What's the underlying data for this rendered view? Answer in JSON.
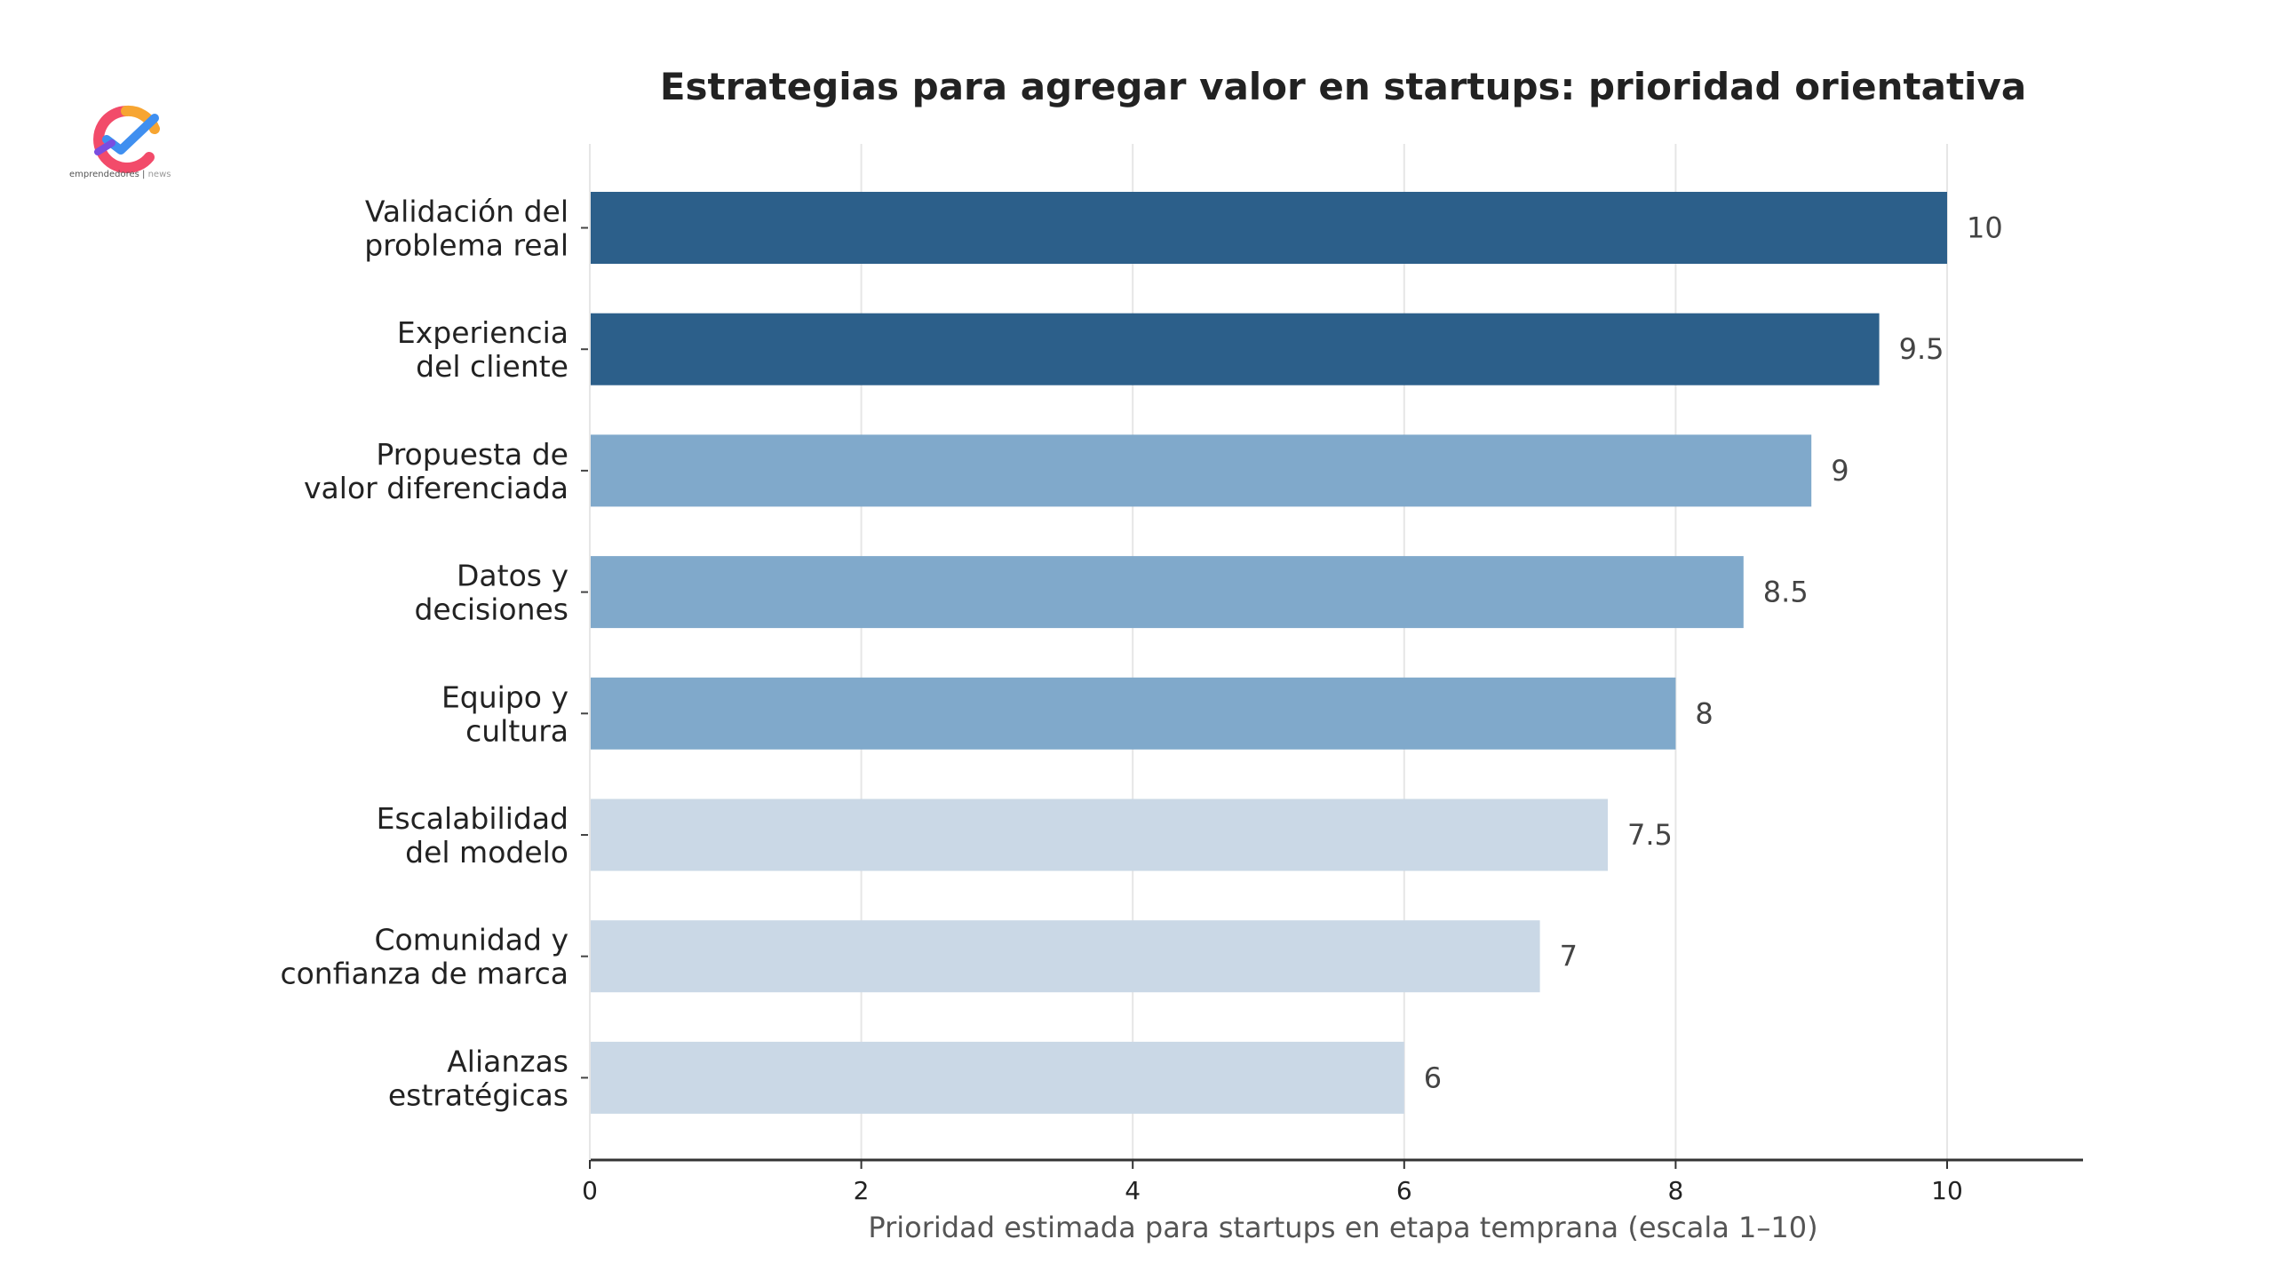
{
  "logo": {
    "text": "emprendedores",
    "suffix": "news"
  },
  "chart_data": {
    "type": "bar",
    "orientation": "horizontal",
    "title": "Estrategias para agregar valor en startups: prioridad orientativa",
    "xlabel": "Prioridad estimada para startups en etapa temprana (escala 1–10)",
    "ylabel": "",
    "xlim": [
      0,
      11
    ],
    "xticks": [
      0,
      2,
      4,
      6,
      8,
      10
    ],
    "grid": "vertical",
    "categories": [
      [
        "Validación del",
        "problema real"
      ],
      [
        "Experiencia",
        "del cliente"
      ],
      [
        "Propuesta de",
        "valor diferenciada"
      ],
      [
        "Datos y",
        "decisiones"
      ],
      [
        "Equipo y",
        "cultura"
      ],
      [
        "Escalabilidad",
        "del modelo"
      ],
      [
        "Comunidad y",
        "confianza de marca"
      ],
      [
        "Alianzas",
        "estratégicas"
      ]
    ],
    "values": [
      10,
      9.5,
      9,
      8.5,
      8,
      7.5,
      7,
      6
    ],
    "value_labels": [
      "10",
      "9.5",
      "9",
      "8.5",
      "8",
      "7.5",
      "7",
      "6"
    ],
    "colors": [
      "#2c5f8a",
      "#2c5f8a",
      "#80a9cb",
      "#80a9cb",
      "#80a9cb",
      "#cad8e6",
      "#cad8e6",
      "#cad8e6"
    ]
  }
}
